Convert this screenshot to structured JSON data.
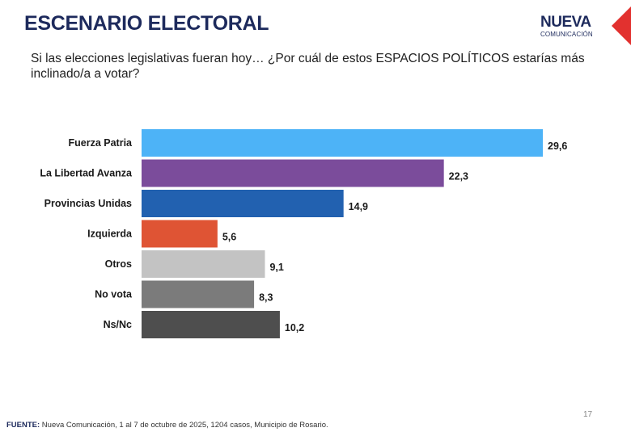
{
  "header": {
    "title": "ESCENARIO ELECTORAL",
    "logo_main": "NUEVA",
    "logo_sub": "COMUNICACIÓN"
  },
  "question": "Si las elecciones legislativas fueran hoy… ¿Por cuál de estos ESPACIOS POLÍTICOS estarías más inclinado/a a votar?",
  "chart_data": {
    "type": "bar",
    "orientation": "horizontal",
    "categories": [
      "Fuerza Patria",
      "La Libertad Avanza",
      "Provincias Unidas",
      "Izquierda",
      "Otros",
      "No vota",
      "Ns/Nc"
    ],
    "values": [
      29.6,
      22.3,
      14.9,
      5.6,
      9.1,
      8.3,
      10.2
    ],
    "value_labels": [
      "29,6",
      "22,3",
      "14,9",
      "5,6",
      "9,1",
      "8,3",
      "10,2"
    ],
    "colors": [
      "#4db3f7",
      "#7b4c9b",
      "#2261b0",
      "#df5434",
      "#c3c3c3",
      "#7b7b7b",
      "#4e4e4e"
    ],
    "xlim": [
      0,
      29.6
    ],
    "grid": false,
    "legend": "none"
  },
  "footer": {
    "source_label": "FUENTE:",
    "source_text": " Nueva Comunicación, 1 al 7 de octubre de 2025, 1204 casos, Municipio de Rosario.",
    "page_number": "17"
  },
  "colors": {
    "title": "#1d2a5c",
    "corner_accent": "#e2312f"
  }
}
